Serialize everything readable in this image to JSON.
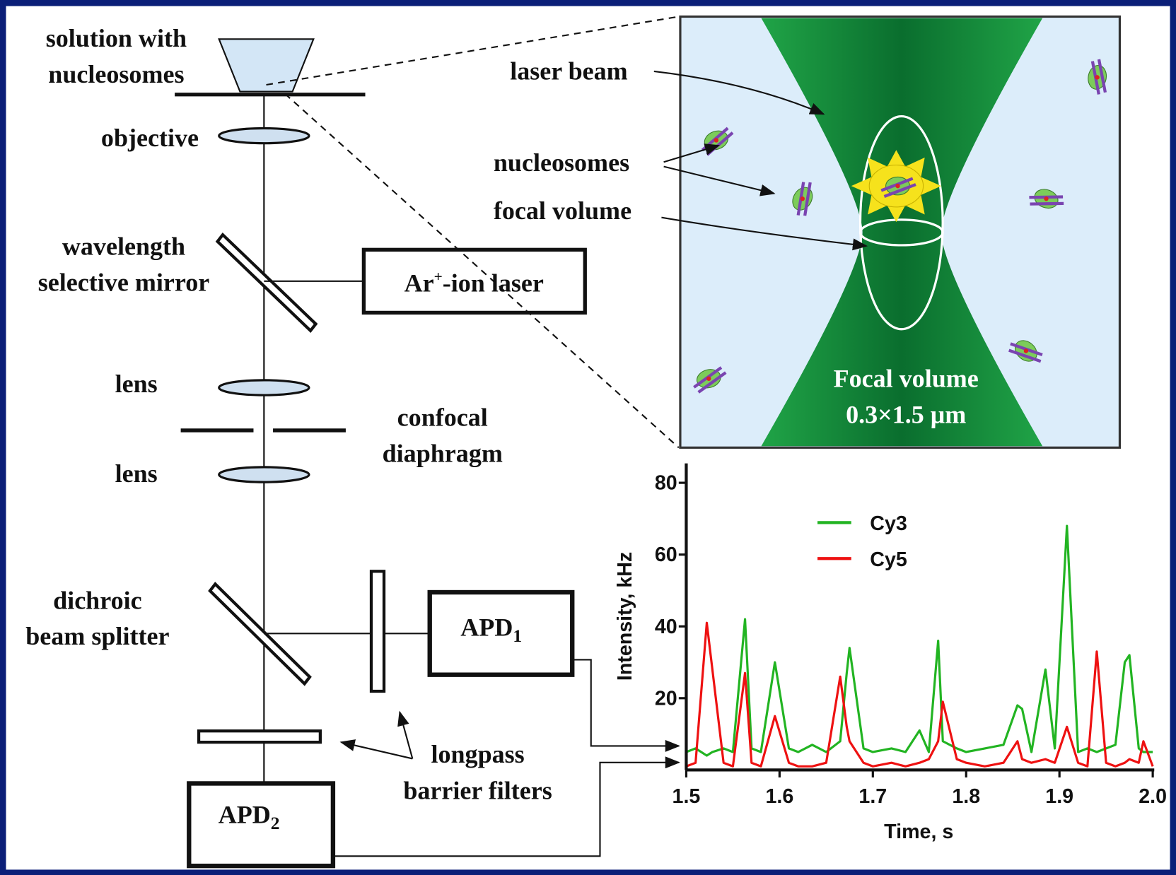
{
  "labels": {
    "solution_line1": "solution with",
    "solution_line2": "nucleosomes",
    "objective": "objective",
    "mirror_line1": "wavelength",
    "mirror_line2": "selective mirror",
    "laser_main": "Ar",
    "laser_sup": "+",
    "laser_rest": "-ion laser",
    "lens_top": "lens",
    "lens_bottom": "lens",
    "confocal_line1": "confocal",
    "confocal_line2": "diaphragm",
    "dichroic_line1": "dichroic",
    "dichroic_line2": "beam splitter",
    "apd1_main": "APD",
    "apd1_sub": "1",
    "apd2_main": "APD",
    "apd2_sub": "2",
    "filters_line1": "longpass",
    "filters_line2": "barrier filters",
    "laser_beam": "laser beam",
    "nucleosomes": "nucleosomes",
    "focal_volume": "focal volume",
    "focal_note_line1": "Focal volume",
    "focal_note_line2": "0.3×1.5  μm"
  },
  "chart_data": {
    "type": "line",
    "x_label": "Time, s",
    "y_label": "Intensity, kHz",
    "x": [
      1.5,
      1.51,
      1.522,
      1.528,
      1.54,
      1.55,
      1.563,
      1.57,
      1.58,
      1.595,
      1.61,
      1.62,
      1.635,
      1.65,
      1.665,
      1.672,
      1.675,
      1.69,
      1.7,
      1.72,
      1.735,
      1.75,
      1.76,
      1.77,
      1.775,
      1.79,
      1.8,
      1.82,
      1.84,
      1.855,
      1.86,
      1.87,
      1.885,
      1.895,
      1.908,
      1.92,
      1.93,
      1.94,
      1.95,
      1.96,
      1.97,
      1.975,
      1.985,
      1.99,
      2.0
    ],
    "series": [
      {
        "name": "Cy3",
        "color": "#22b422",
        "values": [
          5,
          6,
          4,
          5,
          6,
          5,
          42,
          6,
          5,
          30,
          6,
          5,
          7,
          5,
          8,
          27,
          34,
          6,
          5,
          6,
          5,
          11,
          5,
          36,
          8,
          6,
          5,
          6,
          7,
          18,
          17,
          5,
          28,
          6,
          68,
          5,
          6,
          5,
          6,
          7,
          30,
          32,
          6,
          5,
          5
        ]
      },
      {
        "name": "Cy5",
        "color": "#ee1111",
        "values": [
          1,
          2,
          41,
          28,
          2,
          1,
          27,
          2,
          1,
          15,
          2,
          1,
          1,
          2,
          26,
          12,
          8,
          2,
          1,
          2,
          1,
          2,
          3,
          8,
          19,
          3,
          2,
          1,
          2,
          8,
          3,
          2,
          3,
          2,
          12,
          2,
          1,
          33,
          2,
          1,
          2,
          3,
          2,
          8,
          1
        ]
      }
    ],
    "xlim": [
      1.5,
      2.0
    ],
    "ylim": [
      0,
      85
    ],
    "xticks": [
      1.5,
      1.6,
      1.7,
      1.8,
      1.9,
      {
        "value": 2,
        "label": "2.0"
      }
    ],
    "yticks": [
      20,
      40,
      60,
      80
    ]
  }
}
